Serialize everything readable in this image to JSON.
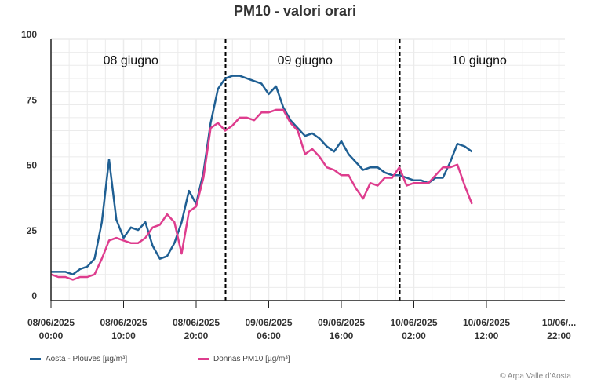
{
  "title": "PM10 - valori orari",
  "credit": "© Arpa Valle d'Aosta",
  "colors": {
    "aosta": "#1f5f93",
    "donnas": "#de3d8e",
    "grid": "#ebebeb",
    "axis": "#222222"
  },
  "y_ticks": [
    "100",
    "75",
    "50",
    "25",
    "0"
  ],
  "x_ticks": [
    {
      "date": "08/06/2025",
      "time": "00:00",
      "hour": 0
    },
    {
      "date": "08/06/2025",
      "time": "10:00",
      "hour": 10
    },
    {
      "date": "08/06/2025",
      "time": "20:00",
      "hour": 20
    },
    {
      "date": "09/06/2025",
      "time": "06:00",
      "hour": 30
    },
    {
      "date": "09/06/2025",
      "time": "16:00",
      "hour": 40
    },
    {
      "date": "10/06/2025",
      "time": "02:00",
      "hour": 50
    },
    {
      "date": "10/06/2025",
      "time": "12:00",
      "hour": 60
    },
    {
      "date": "10/06/...",
      "time": "22:00",
      "hour": 70
    }
  ],
  "day_labels": [
    {
      "text": "08 giugno",
      "hour": 11
    },
    {
      "text": "09 giugno",
      "hour": 35
    },
    {
      "text": "10 giugno",
      "hour": 59
    }
  ],
  "day_dividers_hours": [
    24,
    48
  ],
  "legend": [
    {
      "label": "Aosta - Plouves [µg/m³]",
      "key": "aosta"
    },
    {
      "label": "Donnas PM10 [µg/m³]",
      "key": "donnas"
    }
  ],
  "chart_data": {
    "type": "line",
    "title": "PM10 - valori orari",
    "xlabel": "",
    "ylabel": "",
    "ylim": [
      0,
      100
    ],
    "xlim_hours": [
      0,
      70
    ],
    "x_start": "08/06/2025 00:00",
    "x_step": "1 hour",
    "grid": true,
    "legend_position": "bottom-left",
    "annotations": [
      "08 giugno",
      "09 giugno",
      "10 giugno",
      "dashed line at 09/06/2025 00:00",
      "dashed line at 10/06/2025 00:00"
    ],
    "series": [
      {
        "name": "Aosta - Plouves [µg/m³]",
        "color": "#1f5f93",
        "values": [
          11,
          11,
          11,
          10,
          12,
          13,
          16,
          30,
          54,
          31,
          24,
          28,
          27,
          30,
          21,
          16,
          17,
          22,
          30,
          42,
          37,
          49,
          68,
          81,
          85,
          86,
          86,
          85,
          84,
          83,
          79,
          82,
          74,
          69,
          66,
          63,
          64,
          62,
          59,
          57,
          61,
          56,
          53,
          50,
          51,
          51,
          49,
          48,
          48,
          47,
          46,
          46,
          45,
          47,
          47,
          53,
          60,
          59,
          57
        ]
      },
      {
        "name": "Donnas PM10 [µg/m³]",
        "color": "#de3d8e",
        "values": [
          10,
          9,
          9,
          8,
          9,
          9,
          10,
          16,
          23,
          24,
          23,
          22,
          22,
          24,
          28,
          29,
          33,
          30,
          18,
          34,
          36,
          47,
          66,
          68,
          65,
          67,
          70,
          70,
          69,
          72,
          72,
          73,
          73,
          68,
          65,
          56,
          58,
          55,
          51,
          50,
          48,
          48,
          43,
          39,
          45,
          44,
          47,
          47,
          51,
          44,
          45,
          45,
          45,
          48,
          51,
          51,
          52,
          44,
          37
        ]
      }
    ]
  }
}
